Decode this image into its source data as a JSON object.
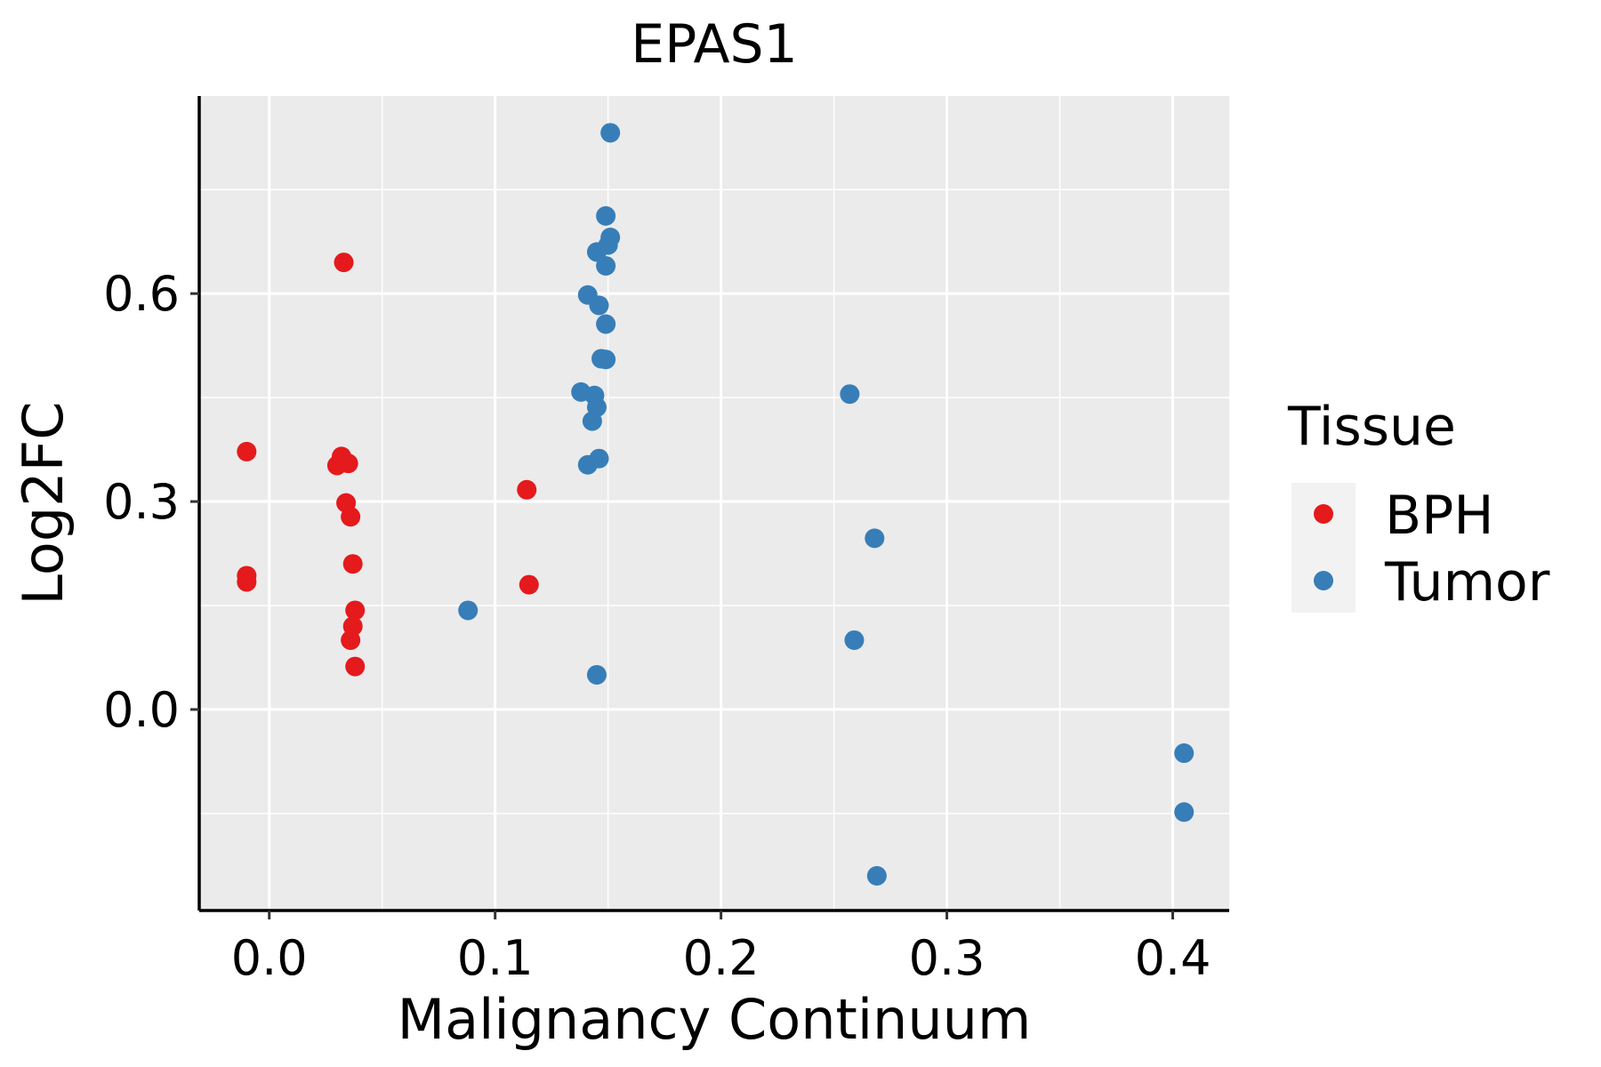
{
  "chart_data": {
    "type": "scatter",
    "title": "EPAS1",
    "xlabel": "Malignancy Continuum",
    "ylabel": "Log2FC",
    "xlim": [
      -0.031,
      0.425
    ],
    "ylim": [
      -0.29,
      0.885
    ],
    "x_ticks": [
      0.0,
      0.1,
      0.2,
      0.3,
      0.4
    ],
    "x_tick_labels": [
      "0.0",
      "0.1",
      "0.2",
      "0.3",
      "0.4"
    ],
    "y_ticks": [
      0.0,
      0.3,
      0.6
    ],
    "y_tick_labels": [
      "0.0",
      "0.3",
      "0.6"
    ],
    "x_minor": [
      0.05,
      0.15,
      0.25,
      0.35
    ],
    "y_minor": [
      -0.15,
      0.15,
      0.45,
      0.75
    ],
    "grid": true,
    "legend": {
      "title": "Tissue",
      "position": "right"
    },
    "series": [
      {
        "name": "BPH",
        "color": "#E41A1C",
        "points": [
          {
            "x": 0.033,
            "y": 0.645
          },
          {
            "x": -0.01,
            "y": 0.372
          },
          {
            "x": 0.032,
            "y": 0.365
          },
          {
            "x": 0.035,
            "y": 0.355
          },
          {
            "x": 0.03,
            "y": 0.352
          },
          {
            "x": 0.034,
            "y": 0.298
          },
          {
            "x": 0.036,
            "y": 0.278
          },
          {
            "x": 0.037,
            "y": 0.21
          },
          {
            "x": -0.01,
            "y": 0.193
          },
          {
            "x": -0.01,
            "y": 0.184
          },
          {
            "x": 0.038,
            "y": 0.143
          },
          {
            "x": 0.037,
            "y": 0.12
          },
          {
            "x": 0.036,
            "y": 0.1
          },
          {
            "x": 0.038,
            "y": 0.062
          },
          {
            "x": 0.114,
            "y": 0.317
          },
          {
            "x": 0.115,
            "y": 0.18
          }
        ]
      },
      {
        "name": "Tumor",
        "color": "#377EB8",
        "points": [
          {
            "x": 0.151,
            "y": 0.832
          },
          {
            "x": 0.149,
            "y": 0.712
          },
          {
            "x": 0.151,
            "y": 0.681
          },
          {
            "x": 0.15,
            "y": 0.67
          },
          {
            "x": 0.145,
            "y": 0.66
          },
          {
            "x": 0.149,
            "y": 0.64
          },
          {
            "x": 0.141,
            "y": 0.598
          },
          {
            "x": 0.146,
            "y": 0.583
          },
          {
            "x": 0.149,
            "y": 0.556
          },
          {
            "x": 0.147,
            "y": 0.506
          },
          {
            "x": 0.149,
            "y": 0.505
          },
          {
            "x": 0.138,
            "y": 0.458
          },
          {
            "x": 0.144,
            "y": 0.453
          },
          {
            "x": 0.145,
            "y": 0.436
          },
          {
            "x": 0.143,
            "y": 0.416
          },
          {
            "x": 0.146,
            "y": 0.362
          },
          {
            "x": 0.141,
            "y": 0.353
          },
          {
            "x": 0.088,
            "y": 0.143
          },
          {
            "x": 0.145,
            "y": 0.05
          },
          {
            "x": 0.257,
            "y": 0.455
          },
          {
            "x": 0.268,
            "y": 0.247
          },
          {
            "x": 0.259,
            "y": 0.1
          },
          {
            "x": 0.269,
            "y": -0.24
          },
          {
            "x": 0.405,
            "y": -0.063
          },
          {
            "x": 0.405,
            "y": -0.148
          }
        ]
      }
    ]
  }
}
